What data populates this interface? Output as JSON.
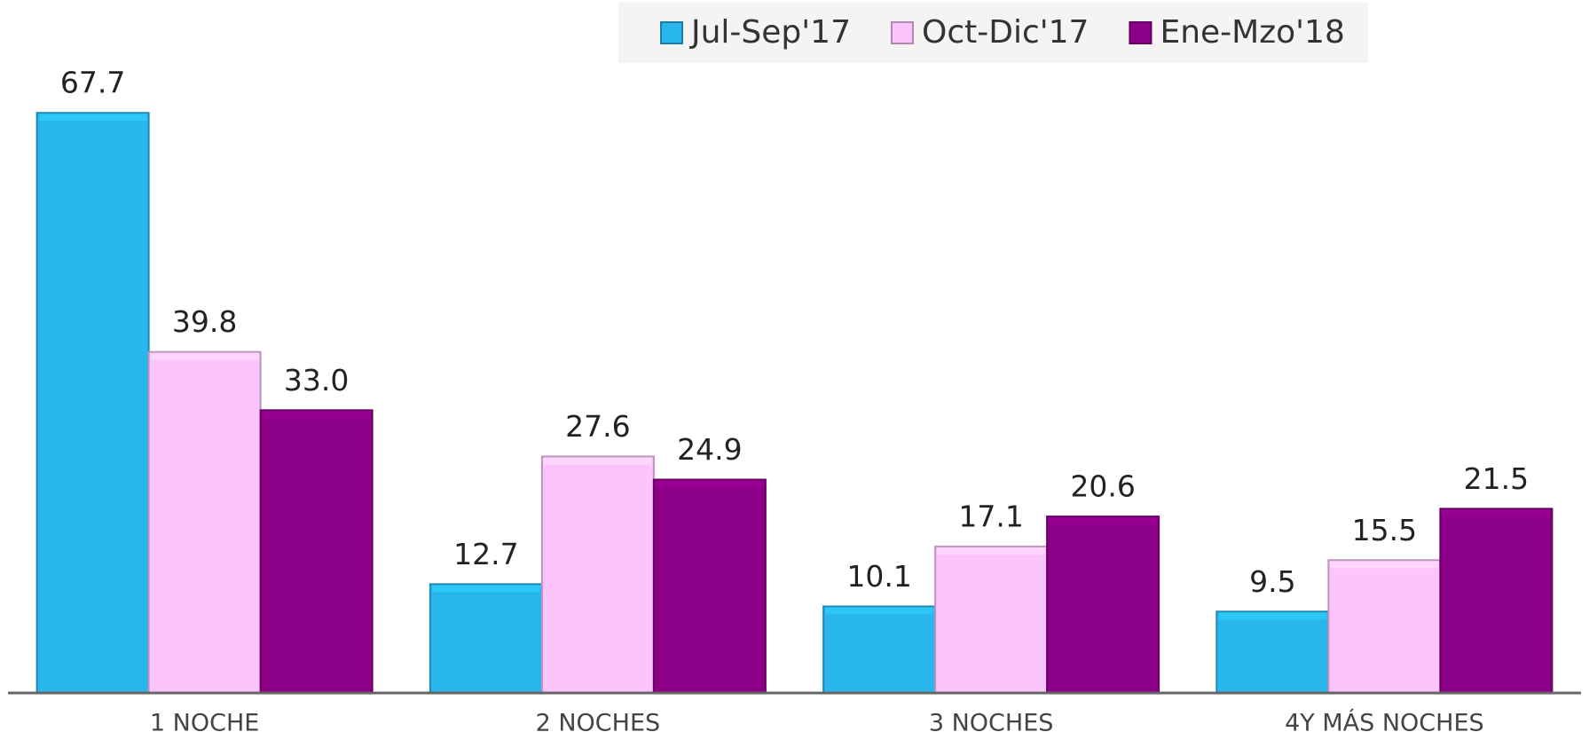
{
  "chart_data": {
    "type": "bar",
    "categories": [
      "1 NOCHE",
      "2 NOCHES",
      "3 NOCHES",
      "4Y MÁS NOCHES"
    ],
    "series": [
      {
        "name": "Jul-Sep'17",
        "color": "#29b6ec",
        "values": [
          67.7,
          12.7,
          10.1,
          9.5
        ]
      },
      {
        "name": "Oct-Dic'17",
        "color": "#fcc4fc",
        "values": [
          39.8,
          27.6,
          17.1,
          15.5
        ]
      },
      {
        "name": "Ene-Mzo'18",
        "color": "#8b0087",
        "values": [
          33,
          24.9,
          20.6,
          21.5
        ],
        "value_labels": [
          "33.0",
          "24.9",
          "20.6",
          "21.5"
        ]
      }
    ],
    "ylim": [
      0,
      70
    ],
    "legend": "top"
  }
}
